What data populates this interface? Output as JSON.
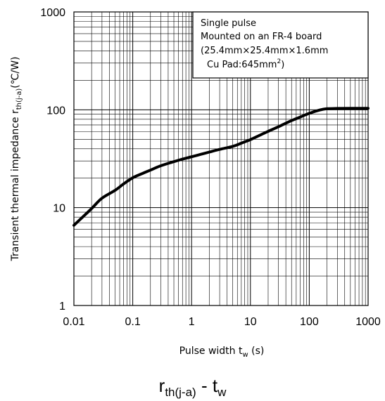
{
  "chart_data": {
    "type": "line",
    "scale": "log-log",
    "grid": true,
    "xlabel": "Pulse width  t",
    "xlabel_sub": "w",
    "xlabel_unit": " (s)",
    "ylabel": "Transient thermal impedance  r",
    "ylabel_sub": "th(j-a)",
    "ylabel_unit": "(℃/W)",
    "xlim": [
      0.01,
      1000
    ],
    "ylim": [
      1,
      1000
    ],
    "xticks": [
      "0.01",
      "0.1",
      "1",
      "10",
      "100",
      "1000"
    ],
    "yticks": [
      "1",
      "10",
      "100",
      "1000"
    ],
    "annotation": [
      "Single pulse",
      "Mounted on an FR-4 board",
      "(25.4mm×25.4mm×1.6mm",
      "Cu Pad:645mm"
    ],
    "annotation_superscript": "2",
    "annotation_suffix": ")",
    "series": [
      {
        "x": [
          0.01,
          0.015,
          0.02,
          0.03,
          0.05,
          0.07,
          0.1,
          0.15,
          0.2,
          0.3,
          0.5,
          0.7,
          1,
          1.5,
          2,
          3,
          5,
          7,
          10,
          15,
          20,
          30,
          50,
          70,
          100,
          150,
          200,
          300,
          500,
          700,
          1000
        ],
        "y": [
          6.6,
          8.3,
          9.8,
          12.5,
          15.0,
          17.5,
          20.2,
          22.5,
          24.2,
          26.8,
          29.5,
          31.3,
          33.1,
          35.3,
          37.0,
          39.4,
          42.3,
          45.6,
          49.6,
          55.6,
          60.2,
          67.2,
          77.6,
          84.3,
          92.0,
          99.4,
          102.5,
          103.2,
          103.4,
          103.5,
          103.5
        ]
      }
    ]
  },
  "caption": {
    "main": "r",
    "sub": "th(j-a)",
    "dash": " - t",
    "sub2": "w"
  }
}
